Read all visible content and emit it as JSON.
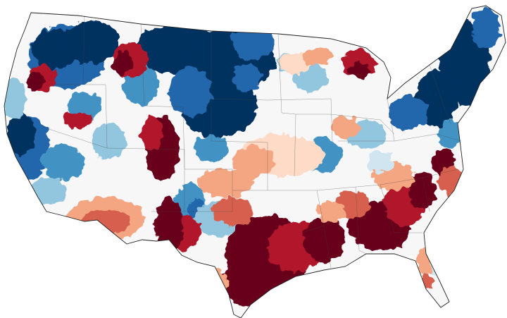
{
  "map": {
    "region": "contiguous-united-states",
    "style": "choropleth-climate-division-anomaly",
    "boundaries": "state-lines",
    "palette": {
      "wet_strong": "#053061",
      "wet_high": "#2166ac",
      "wet_mid": "#4393c3",
      "wet_low": "#92c5de",
      "wet_slight": "#d1e5f0",
      "neutral": "#f7f7f7",
      "dry_slight": "#fddbc7",
      "dry_low": "#f4a582",
      "dry_mid": "#d6604d",
      "dry_high": "#b2182b",
      "dry_strong": "#67001f",
      "border": "#333333",
      "background": "#ffffff"
    }
  }
}
